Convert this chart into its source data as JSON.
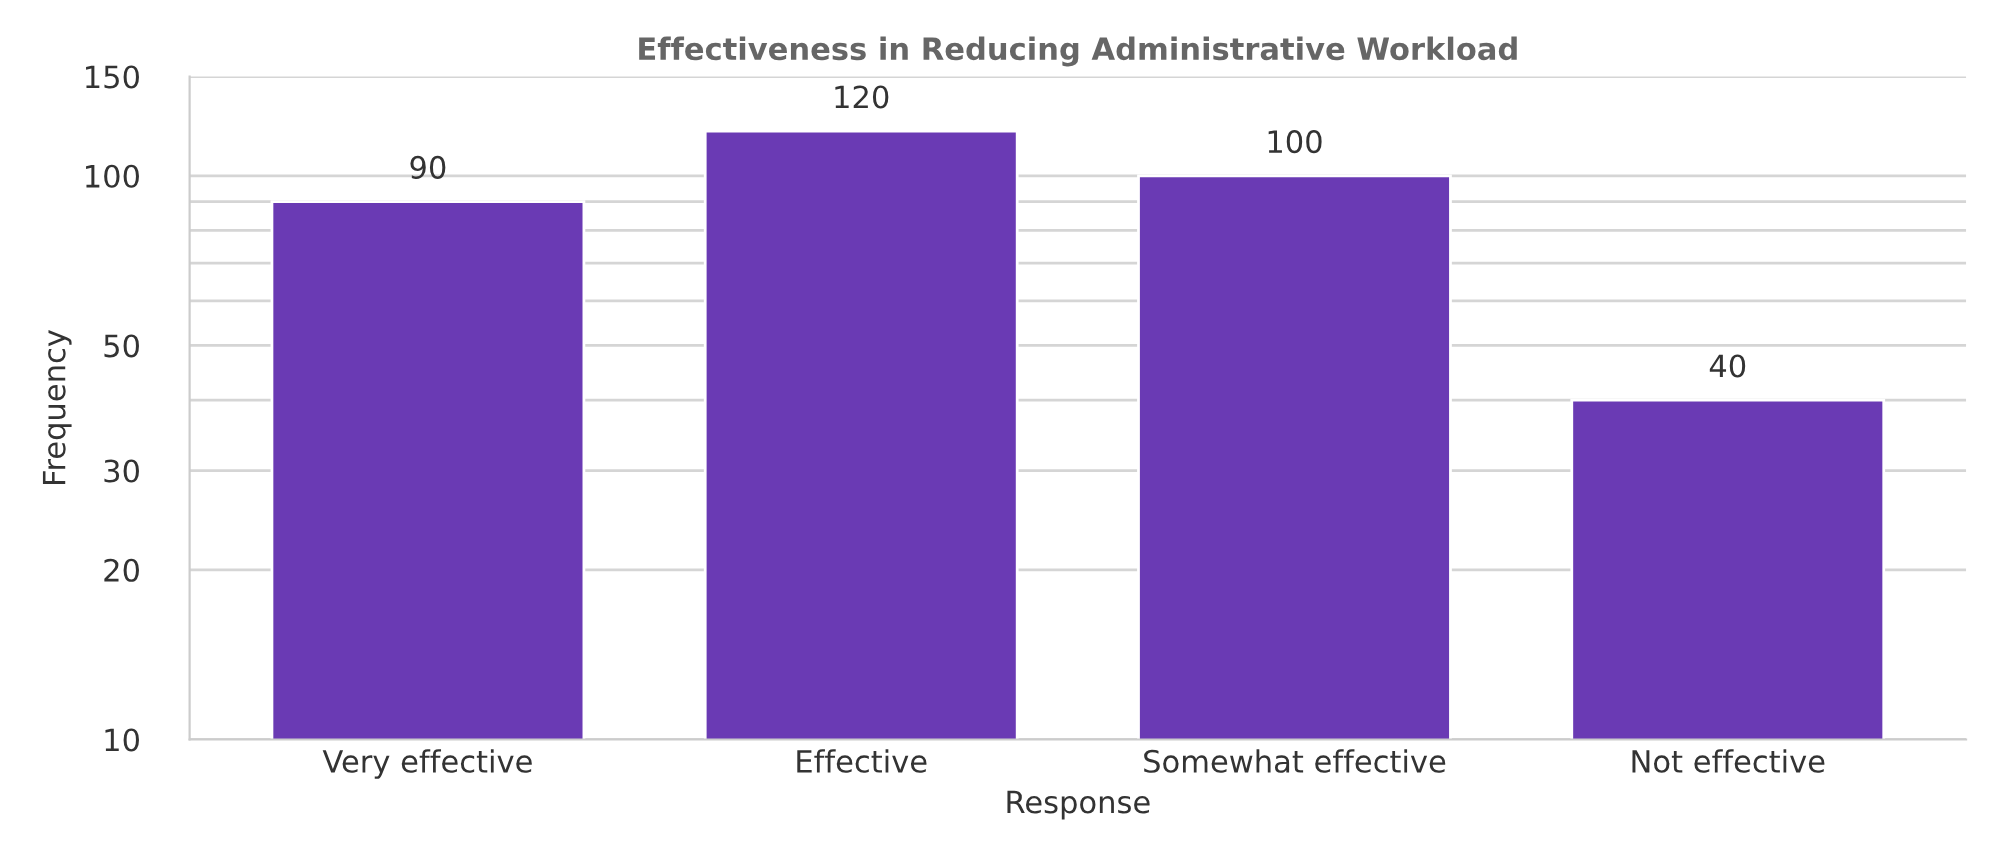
{
  "chart_data": {
    "type": "bar",
    "title": "Effectiveness in Reducing Administrative Workload",
    "xlabel": "Response",
    "ylabel": "Frequency",
    "categories": [
      "Very effective",
      "Effective",
      "Somewhat effective",
      "Not effective"
    ],
    "values": [
      90,
      120,
      100,
      40
    ],
    "color": "#6a3ab4",
    "log": true,
    "ylim": [
      10,
      150
    ],
    "yticks": [
      10,
      20,
      30,
      {
        "value": 40,
        "label": null
      },
      50,
      {
        "value": 60,
        "label": null
      },
      {
        "value": 70,
        "label": null
      },
      {
        "value": 80,
        "label": null
      },
      {
        "value": 90,
        "label": null
      },
      100,
      150
    ],
    "grid": "y",
    "data_labels": true
  }
}
